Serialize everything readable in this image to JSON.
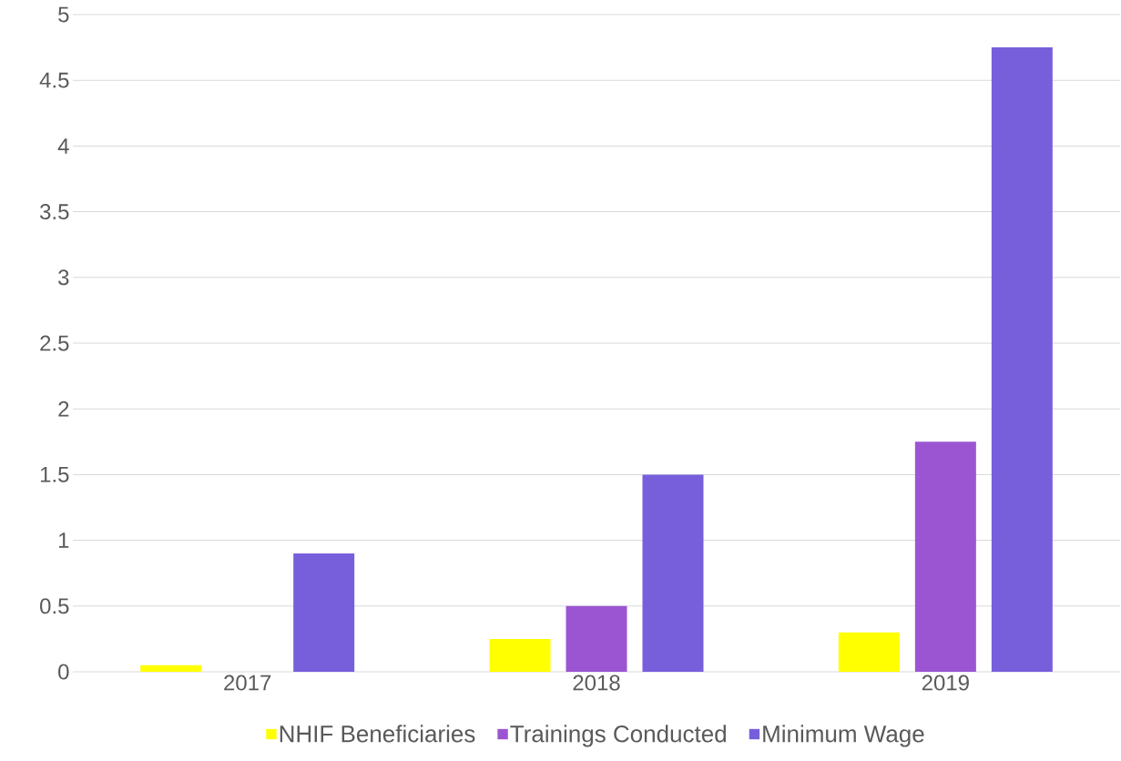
{
  "chart_data": {
    "type": "bar",
    "categories": [
      "2017",
      "2018",
      "2019"
    ],
    "series": [
      {
        "name": "NHIF Beneficiaries",
        "color": "#ffff00",
        "values": [
          0.05,
          0.25,
          0.3
        ]
      },
      {
        "name": "Trainings Conducted",
        "color": "#9b55d2",
        "values": [
          null,
          0.5,
          1.75
        ]
      },
      {
        "name": "Minimum Wage",
        "color": "#775fdc",
        "values": [
          0.9,
          1.5,
          4.75
        ]
      }
    ],
    "ylim": [
      0,
      5
    ],
    "yticks": [
      0,
      0.5,
      1,
      1.5,
      2,
      2.5,
      3,
      3.5,
      4,
      4.5,
      5
    ],
    "grid": "y",
    "legend": "bottom"
  }
}
